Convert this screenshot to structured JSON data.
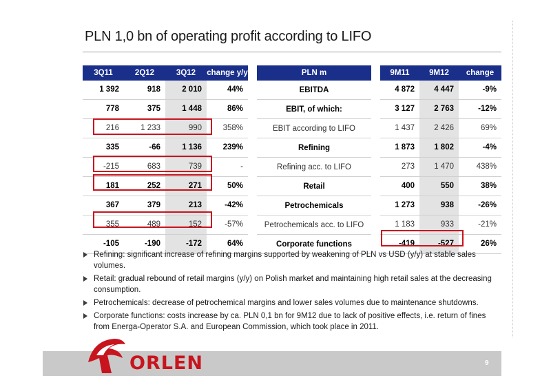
{
  "title": "PLN 1,0 bn of operating profit according to LIFO",
  "left_table": {
    "headers": [
      "3Q11",
      "2Q12",
      "3Q12",
      "change y/y"
    ],
    "rows": [
      [
        "1 392",
        "918",
        "2 010",
        "44%"
      ],
      [
        "778",
        "375",
        "1 448",
        "86%"
      ],
      [
        "216",
        "1 233",
        "990",
        "358%"
      ],
      [
        "335",
        "-66",
        "1 136",
        "239%"
      ],
      [
        "-215",
        "683",
        "739",
        "-"
      ],
      [
        "181",
        "252",
        "271",
        "50%"
      ],
      [
        "367",
        "379",
        "213",
        "-42%"
      ],
      [
        "355",
        "489",
        "152",
        "-57%"
      ],
      [
        "-105",
        "-190",
        "-172",
        "64%"
      ]
    ]
  },
  "mid_table": {
    "header": "PLN m",
    "rows": [
      "EBITDA",
      "EBIT, of which:",
      "EBIT according to LIFO",
      "Refining",
      "Refining acc. to LIFO",
      "Retail",
      "Petrochemicals",
      "Petrochemicals acc. to LIFO",
      "Corporate functions"
    ]
  },
  "right_table": {
    "headers": [
      "9M11",
      "9M12",
      "change"
    ],
    "rows": [
      [
        "4 872",
        "4 447",
        "-9%"
      ],
      [
        "3 127",
        "2 763",
        "-12%"
      ],
      [
        "1 437",
        "2 426",
        "69%"
      ],
      [
        "1 873",
        "1 802",
        "-4%"
      ],
      [
        "273",
        "1 470",
        "438%"
      ],
      [
        "400",
        "550",
        "38%"
      ],
      [
        "1 273",
        "938",
        "-26%"
      ],
      [
        "1 183",
        "933",
        "-21%"
      ],
      [
        "-419",
        "-527",
        "26%"
      ]
    ]
  },
  "bullets": [
    "Refining: significant increase of refining margins supported by weakening of PLN vs USD (y/y) at stable sales volumes.",
    "Retail: gradual rebound of retail margins (y/y) on Polish market and maintaining high retail sales at the decreasing consumption.",
    "Petrochemicals: decrease of petrochemical margins and lower sales volumes due to maintenance shutdowns.",
    "Corporate functions: costs increase by ca. PLN 0,1 bn for 9M12 due to lack of positive effects, i.e. return of fines from Energa-Operator S.A. and European Commission, which took place in 2011."
  ],
  "footer": {
    "logo": "ORLEN",
    "page_number": "9"
  },
  "colors": {
    "header_bg": "#1a2f8a",
    "highlight_red": "#c8141e",
    "shade": "#e3e3e3",
    "footer_bar": "#c9c9c9"
  }
}
